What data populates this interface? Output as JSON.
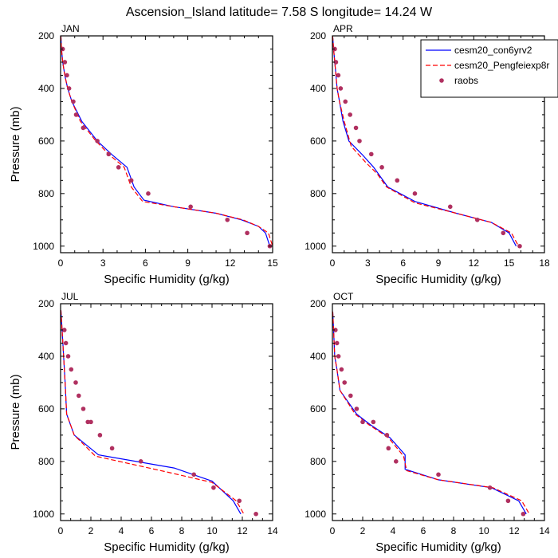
{
  "title": "Ascension_Island  latitude= 7.58 S longitude= 14.24 W",
  "legend": {
    "placement": "top-right",
    "entries": [
      {
        "name": "cesm20_con6yrv2",
        "color": "#0000ff",
        "style": "solid"
      },
      {
        "name": "cesm20_Pengfeiexp8r",
        "color": "#ff0000",
        "style": "dashed"
      },
      {
        "name": "raobs",
        "color": "#b03060",
        "style": "dots"
      }
    ]
  },
  "chart_data": [
    {
      "type": "line",
      "panel": "JAN",
      "xlabel": "Specific Humidity (g/kg)",
      "ylabel": "Pressure (mb)",
      "xlim": [
        0,
        15
      ],
      "ylim": [
        1025,
        200
      ],
      "xticks": [
        0,
        3,
        6,
        9,
        12,
        15
      ],
      "yticks": [
        200,
        400,
        600,
        800,
        1000
      ],
      "series": [
        {
          "name": "cesm20_con6yrv2",
          "x": [
            0.02,
            0.06,
            0.15,
            0.3,
            0.5,
            0.8,
            1.5,
            2.6,
            3.6,
            4.7,
            5.2,
            5.9,
            8.0,
            11.0,
            12.8,
            14.0,
            14.5,
            14.8
          ],
          "y": [
            200,
            250,
            300,
            350,
            400,
            450,
            525,
            600,
            650,
            700,
            775,
            825,
            850,
            875,
            900,
            925,
            950,
            1000
          ]
        },
        {
          "name": "cesm20_Pengfeiexp8r",
          "x": [
            0.02,
            0.06,
            0.15,
            0.3,
            0.5,
            0.8,
            1.4,
            2.5,
            3.4,
            4.5,
            5.0,
            5.8,
            8.0,
            11.0,
            12.9,
            14.0,
            14.7,
            15.0
          ],
          "y": [
            200,
            250,
            300,
            350,
            400,
            450,
            525,
            600,
            650,
            700,
            775,
            830,
            850,
            875,
            900,
            925,
            950,
            1000
          ]
        },
        {
          "name": "raobs",
          "x": [
            0.15,
            0.3,
            0.45,
            0.6,
            0.9,
            1.1,
            1.6,
            2.6,
            3.4,
            4.1,
            5.0,
            6.2,
            9.2,
            11.8,
            13.2,
            14.8
          ],
          "y": [
            250,
            300,
            350,
            400,
            450,
            500,
            550,
            600,
            650,
            700,
            750,
            800,
            850,
            900,
            950,
            1000
          ]
        }
      ]
    },
    {
      "type": "line",
      "panel": "APR",
      "xlabel": "Specific Humidity (g/kg)",
      "ylabel": "",
      "xlim": [
        0,
        18
      ],
      "ylim": [
        1025,
        200
      ],
      "xticks": [
        0,
        3,
        6,
        9,
        12,
        15,
        18
      ],
      "yticks": [
        200,
        400,
        600,
        800,
        1000
      ],
      "series": [
        {
          "name": "cesm20_con6yrv2",
          "x": [
            0.02,
            0.1,
            0.2,
            0.4,
            0.6,
            0.9,
            1.4,
            2.5,
            3.5,
            4.7,
            7.0,
            10.5,
            13.5,
            15.0,
            15.6
          ],
          "y": [
            200,
            250,
            300,
            400,
            450,
            525,
            600,
            650,
            700,
            775,
            830,
            875,
            910,
            950,
            1000
          ]
        },
        {
          "name": "cesm20_Pengfeiexp8r",
          "x": [
            0.02,
            0.1,
            0.2,
            0.4,
            0.6,
            1.0,
            1.6,
            2.8,
            3.8,
            4.6,
            7.0,
            10.5,
            13.5,
            15.2,
            15.8
          ],
          "y": [
            200,
            250,
            300,
            400,
            450,
            525,
            620,
            680,
            725,
            775,
            835,
            875,
            910,
            950,
            1000
          ]
        },
        {
          "name": "raobs",
          "x": [
            0.2,
            0.3,
            0.5,
            0.7,
            1.1,
            1.5,
            2.0,
            2.3,
            3.3,
            4.2,
            5.5,
            7.0,
            10.0,
            12.3,
            14.5,
            15.9
          ],
          "y": [
            250,
            300,
            350,
            400,
            450,
            500,
            550,
            600,
            650,
            700,
            750,
            800,
            850,
            900,
            950,
            1000
          ]
        }
      ]
    },
    {
      "type": "line",
      "panel": "JUL",
      "xlabel": "Specific Humidity (g/kg)",
      "ylabel": "Pressure (mb)",
      "xlim": [
        0,
        14
      ],
      "ylim": [
        1025,
        200
      ],
      "xticks": [
        0,
        2,
        4,
        6,
        8,
        10,
        12,
        14
      ],
      "yticks": [
        200,
        400,
        600,
        800,
        1000
      ],
      "series": [
        {
          "name": "cesm20_con6yrv2",
          "x": [
            0.02,
            0.1,
            0.2,
            0.3,
            0.4,
            0.9,
            2.5,
            7.5,
            10.0,
            11.4,
            11.9
          ],
          "y": [
            225,
            300,
            400,
            500,
            620,
            700,
            775,
            825,
            875,
            950,
            1000
          ]
        },
        {
          "name": "cesm20_Pengfeiexp8r",
          "x": [
            0.02,
            0.1,
            0.2,
            0.3,
            0.4,
            0.9,
            2.3,
            7.0,
            10.0,
            11.6,
            12.1
          ],
          "y": [
            225,
            300,
            400,
            500,
            620,
            700,
            780,
            840,
            880,
            950,
            1000
          ]
        },
        {
          "name": "raobs",
          "x": [
            0.25,
            0.35,
            0.5,
            0.7,
            1.0,
            1.2,
            1.5,
            1.8,
            2.0,
            2.6,
            3.4,
            5.3,
            8.8,
            10.1,
            11.8,
            12.9
          ],
          "y": [
            300,
            350,
            400,
            450,
            500,
            550,
            600,
            650,
            650,
            700,
            750,
            800,
            850,
            900,
            950,
            1000
          ]
        }
      ]
    },
    {
      "type": "line",
      "panel": "OCT",
      "xlabel": "Specific Humidity (g/kg)",
      "ylabel": "",
      "xlim": [
        0,
        14
      ],
      "ylim": [
        1025,
        200
      ],
      "xticks": [
        0,
        2,
        4,
        6,
        8,
        10,
        12,
        14
      ],
      "yticks": [
        200,
        400,
        600,
        800,
        1000
      ],
      "series": [
        {
          "name": "cesm20_con6yrv2",
          "x": [
            0.02,
            0.08,
            0.15,
            0.3,
            0.5,
            1.6,
            2.5,
            3.8,
            4.8,
            4.8,
            7.0,
            10.5,
            12.3,
            12.8
          ],
          "y": [
            230,
            300,
            400,
            450,
            530,
            620,
            660,
            710,
            775,
            830,
            870,
            900,
            950,
            1000
          ]
        },
        {
          "name": "cesm20_Pengfeiexp8r",
          "x": [
            0.02,
            0.08,
            0.15,
            0.3,
            0.5,
            1.5,
            2.4,
            3.7,
            4.7,
            4.9,
            7.0,
            10.6,
            12.5,
            13.0
          ],
          "y": [
            230,
            300,
            400,
            450,
            530,
            620,
            660,
            710,
            780,
            835,
            870,
            900,
            950,
            1000
          ]
        },
        {
          "name": "raobs",
          "x": [
            0.2,
            0.3,
            0.4,
            0.6,
            0.8,
            1.2,
            1.6,
            2.0,
            2.7,
            3.6,
            3.7,
            4.2,
            7.0,
            10.4,
            11.6,
            12.6
          ],
          "y": [
            300,
            350,
            400,
            450,
            500,
            550,
            600,
            650,
            650,
            700,
            750,
            800,
            850,
            900,
            950,
            1000
          ]
        }
      ]
    }
  ]
}
